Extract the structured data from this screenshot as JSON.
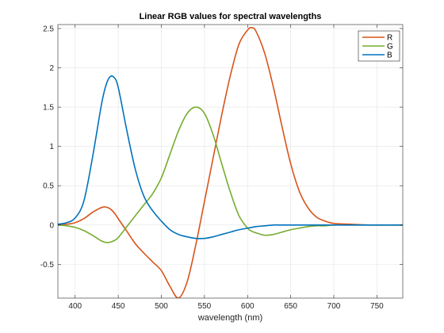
{
  "chart_data": {
    "type": "line",
    "title": "Linear RGB values for spectral wavelengths",
    "xlabel": "wavelength (nm)",
    "ylabel": "",
    "xlim": [
      380,
      780
    ],
    "ylim": [
      -0.93,
      2.55
    ],
    "xticks": [
      400,
      450,
      500,
      550,
      600,
      650,
      700,
      750
    ],
    "yticks": [
      -0.5,
      0,
      0.5,
      1,
      1.5,
      2,
      2.5
    ],
    "grid": true,
    "legend_position": "top-right",
    "colors": {
      "R": "#D95319",
      "G": "#77AC30",
      "B": "#0072BD",
      "grid": "#E3E3E3",
      "axis": "#262626"
    },
    "x": [
      380,
      390,
      400,
      410,
      420,
      430,
      435,
      440,
      445,
      450,
      460,
      470,
      480,
      490,
      500,
      510,
      520,
      530,
      540,
      550,
      560,
      570,
      580,
      590,
      600,
      605,
      610,
      620,
      630,
      640,
      650,
      660,
      670,
      680,
      690,
      700,
      720,
      740,
      760,
      780
    ],
    "series": [
      {
        "name": "R",
        "values": [
          0.0,
          0.01,
          0.03,
          0.08,
          0.16,
          0.22,
          0.23,
          0.21,
          0.16,
          0.08,
          -0.08,
          -0.24,
          -0.36,
          -0.47,
          -0.58,
          -0.78,
          -0.93,
          -0.72,
          -0.25,
          0.3,
          0.85,
          1.4,
          1.9,
          2.3,
          2.48,
          2.51,
          2.46,
          2.18,
          1.75,
          1.25,
          0.78,
          0.43,
          0.22,
          0.1,
          0.05,
          0.02,
          0.01,
          0.0,
          0.0,
          0.0
        ]
      },
      {
        "name": "G",
        "values": [
          0.0,
          -0.01,
          -0.03,
          -0.07,
          -0.13,
          -0.2,
          -0.22,
          -0.22,
          -0.2,
          -0.16,
          -0.02,
          0.12,
          0.26,
          0.4,
          0.6,
          0.9,
          1.2,
          1.42,
          1.5,
          1.42,
          1.15,
          0.78,
          0.42,
          0.12,
          -0.04,
          -0.08,
          -0.1,
          -0.13,
          -0.12,
          -0.09,
          -0.06,
          -0.04,
          -0.02,
          -0.01,
          -0.01,
          0.0,
          0.0,
          0.0,
          0.0,
          0.0
        ]
      },
      {
        "name": "B",
        "values": [
          0.01,
          0.03,
          0.09,
          0.3,
          0.85,
          1.5,
          1.75,
          1.88,
          1.88,
          1.75,
          1.2,
          0.7,
          0.36,
          0.18,
          0.05,
          -0.06,
          -0.12,
          -0.15,
          -0.17,
          -0.17,
          -0.15,
          -0.12,
          -0.09,
          -0.06,
          -0.04,
          -0.03,
          -0.02,
          -0.01,
          0.0,
          0.0,
          0.0,
          0.0,
          0.0,
          0.0,
          0.0,
          0.0,
          0.0,
          0.0,
          0.0,
          0.0
        ]
      }
    ]
  }
}
